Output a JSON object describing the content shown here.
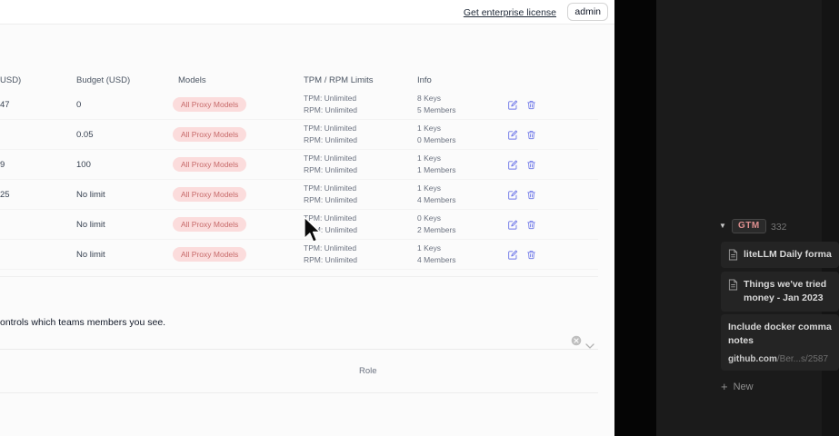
{
  "topbar": {
    "license_link": "Get enterprise license",
    "user_button": "admin"
  },
  "table": {
    "headers": {
      "spend": "USD)",
      "budget": "Budget (USD)",
      "models": "Models",
      "limits": "TPM / RPM Limits",
      "info": "Info"
    },
    "badge_label": "All Proxy Models",
    "rows": [
      {
        "spend": "47",
        "budget": "0",
        "tpm": "TPM: Unlimited",
        "rpm": "RPM: Unlimited",
        "keys": "8 Keys",
        "members": "5 Members"
      },
      {
        "spend": "",
        "budget": "0.05",
        "tpm": "TPM: Unlimited",
        "rpm": "RPM: Unlimited",
        "keys": "1 Keys",
        "members": "0 Members"
      },
      {
        "spend": "9",
        "budget": "100",
        "tpm": "TPM: Unlimited",
        "rpm": "RPM: Unlimited",
        "keys": "1 Keys",
        "members": "1 Members"
      },
      {
        "spend": "25",
        "budget": "No limit",
        "tpm": "TPM: Unlimited",
        "rpm": "RPM: Unlimited",
        "keys": "1 Keys",
        "members": "4 Members"
      },
      {
        "spend": "",
        "budget": "No limit",
        "tpm": "TPM: Unlimited",
        "rpm": "RPM: Unlimited",
        "keys": "0 Keys",
        "members": "2 Members"
      },
      {
        "spend": "",
        "budget": "No limit",
        "tpm": "TPM: Unlimited",
        "rpm": "RPM: Unlimited",
        "keys": "1 Keys",
        "members": "4 Members"
      }
    ]
  },
  "members_section": {
    "caption": "ontrols which teams members you see.",
    "role_header": "Role"
  },
  "notion_panel": {
    "group_tag": "GTM",
    "group_count": "332",
    "items": [
      {
        "line1": "liteLLM Daily forma"
      },
      {
        "line1": "Things we've tried",
        "line2": "money - Jan 2023"
      },
      {
        "line1": "Include docker comma",
        "line2": "notes",
        "link_bold": "github.com",
        "link_gray": "/Ber...s/2587"
      }
    ],
    "new_label": "New"
  },
  "colors": {
    "accent_icon": "#6d76e8",
    "badge_bg": "#fbdcdc",
    "badge_text": "#c76a6a",
    "tag_text": "#de8f8f"
  }
}
